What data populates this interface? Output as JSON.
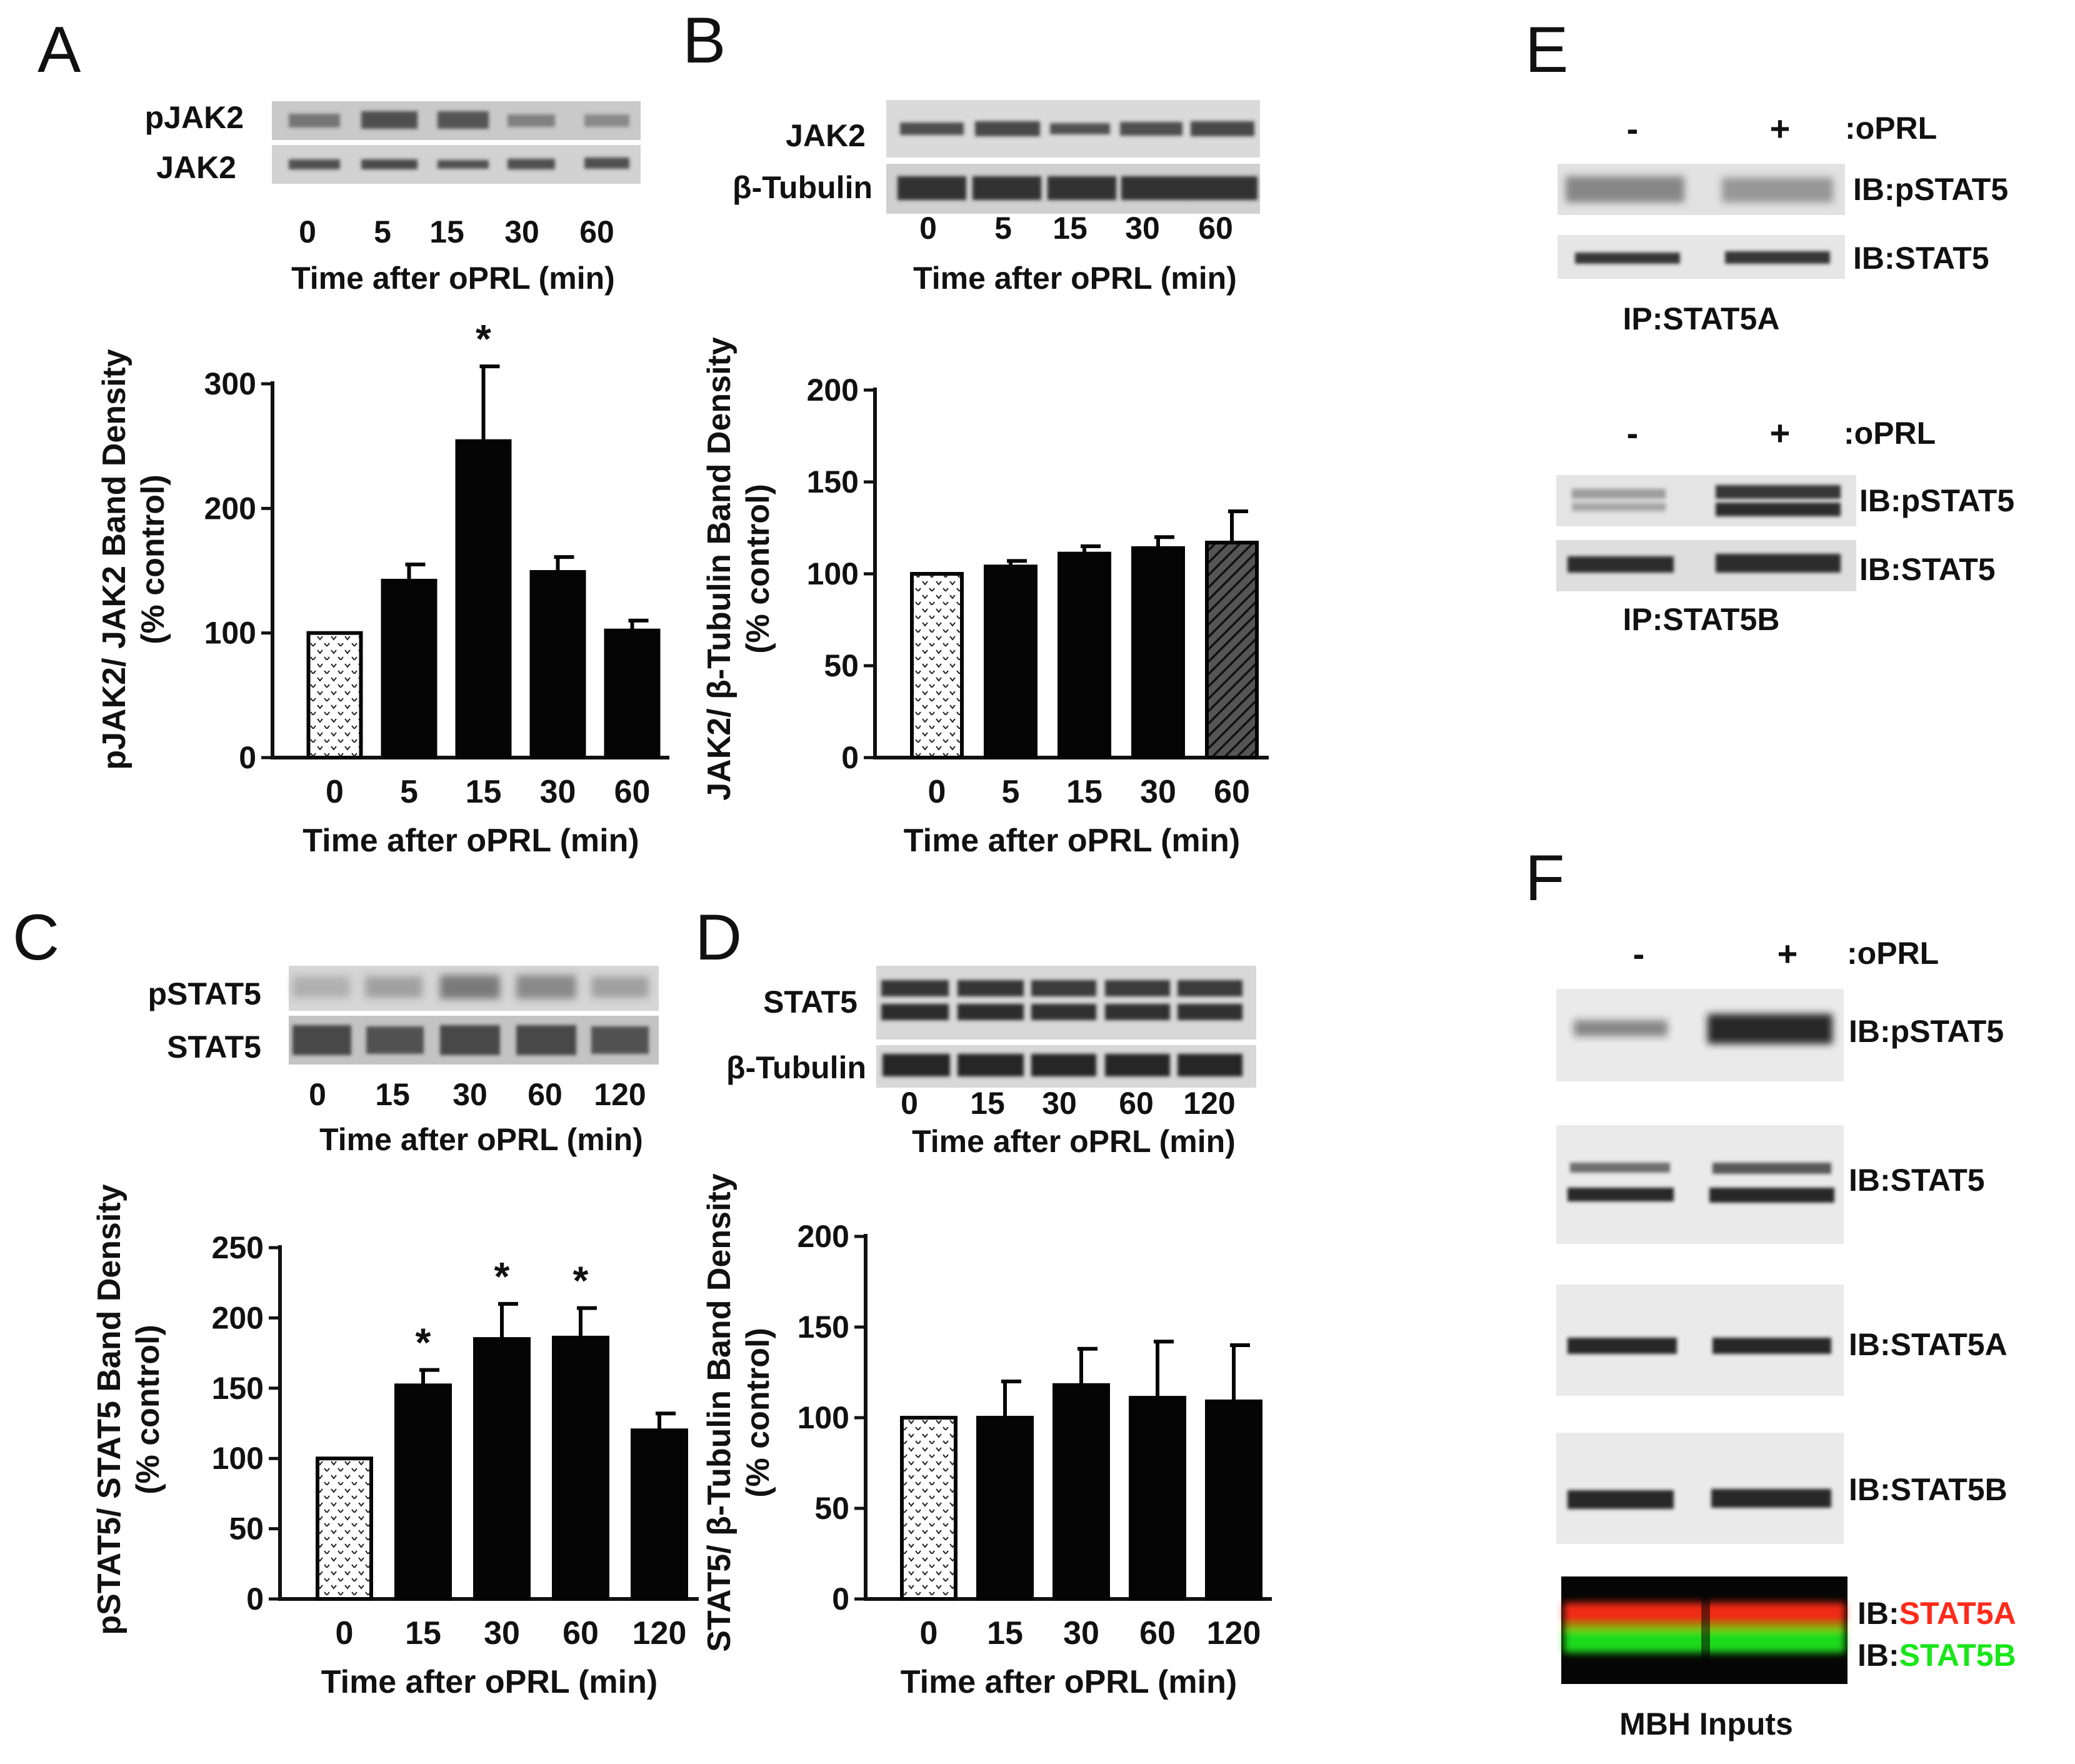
{
  "colors": {
    "ink": "#111111",
    "red": "#ff2a1a",
    "green": "#19e619"
  },
  "panels": {
    "A": {
      "letter": "A",
      "blot": {
        "rows": [
          "pJAK2",
          "JAK2"
        ],
        "lanes": [
          "0",
          "5",
          "15",
          "30",
          "60"
        ],
        "time_label": "Time after oPRL (min)"
      },
      "chart_data": {
        "type": "bar",
        "categories": [
          "0",
          "5",
          "15",
          "30",
          "60"
        ],
        "values": [
          100,
          142,
          254,
          149,
          102
        ],
        "errors": [
          0,
          13,
          60,
          12,
          8
        ],
        "significant": [
          false,
          false,
          true,
          false,
          false
        ],
        "sig_marker": "*",
        "ylabel_line1": "pJAK2/ JAK2 Band Density",
        "ylabel_line2": "(% control)",
        "xlabel": "Time after oPRL (min)",
        "ylim": [
          0,
          300
        ],
        "yticks": [
          "0",
          "100",
          "200",
          "300"
        ],
        "patterns": [
          "dots",
          "solid",
          "solid",
          "solid",
          "solid"
        ]
      }
    },
    "B": {
      "letter": "B",
      "blot": {
        "rows": [
          "JAK2",
          "β-Tubulin"
        ],
        "lanes": [
          "0",
          "5",
          "15",
          "30",
          "60"
        ],
        "time_label": "Time after oPRL (min)"
      },
      "chart_data": {
        "type": "bar",
        "categories": [
          "0",
          "5",
          "15",
          "30",
          "60"
        ],
        "values": [
          100,
          104,
          111,
          114,
          117
        ],
        "errors": [
          0,
          3,
          4,
          6,
          17
        ],
        "significant": [
          false,
          false,
          false,
          false,
          false
        ],
        "sig_marker": "*",
        "ylabel_line1": "JAK2/ β-Tubulin Band Density",
        "ylabel_line2": "(% control)",
        "xlabel": "Time after oPRL (min)",
        "ylim": [
          0,
          200
        ],
        "yticks": [
          "0",
          "50",
          "100",
          "150",
          "200"
        ],
        "patterns": [
          "dots",
          "solid",
          "solid",
          "solid",
          "hatch"
        ]
      }
    },
    "C": {
      "letter": "C",
      "blot": {
        "rows": [
          "pSTAT5",
          "STAT5"
        ],
        "lanes": [
          "0",
          "15",
          "30",
          "60",
          "120"
        ],
        "time_label": "Time after oPRL (min)"
      },
      "chart_data": {
        "type": "bar",
        "categories": [
          "0",
          "15",
          "30",
          "60",
          "120"
        ],
        "values": [
          100,
          152,
          185,
          186,
          120
        ],
        "errors": [
          0,
          11,
          25,
          21,
          12
        ],
        "significant": [
          false,
          true,
          true,
          true,
          false
        ],
        "sig_marker": "*",
        "ylabel_line1": "pSTAT5/ STAT5 Band Density",
        "ylabel_line2": "(% control)",
        "xlabel": "Time after oPRL (min)",
        "ylim": [
          0,
          250
        ],
        "yticks": [
          "0",
          "50",
          "100",
          "150",
          "200",
          "250"
        ],
        "patterns": [
          "dots",
          "solid",
          "solid",
          "solid",
          "solid"
        ]
      }
    },
    "D": {
      "letter": "D",
      "blot": {
        "rows": [
          "STAT5",
          "β-Tubulin"
        ],
        "lanes": [
          "0",
          "15",
          "30",
          "60",
          "120"
        ],
        "time_label": "Time after oPRL (min)"
      },
      "chart_data": {
        "type": "bar",
        "categories": [
          "0",
          "15",
          "30",
          "60",
          "120"
        ],
        "values": [
          100,
          100,
          118,
          111,
          109
        ],
        "errors": [
          0,
          20,
          20,
          31,
          31
        ],
        "significant": [
          false,
          false,
          false,
          false,
          false
        ],
        "sig_marker": "*",
        "ylabel_line1": "STAT5/ β-Tubulin Band Density",
        "ylabel_line2": "(% control)",
        "xlabel": "Time after oPRL (min)",
        "ylim": [
          0,
          200
        ],
        "yticks": [
          "0",
          "50",
          "100",
          "150",
          "200"
        ],
        "patterns": [
          "dots",
          "solid",
          "solid",
          "solid",
          "solid"
        ]
      }
    },
    "E": {
      "letter": "E",
      "minus": "-",
      "plus": "+",
      "treatment": ":oPRL",
      "ib_pstat5": "IB:pSTAT5",
      "ib_stat5": "IB:STAT5",
      "ip_a": "IP:STAT5A",
      "ip_b": "IP:STAT5B"
    },
    "F": {
      "letter": "F",
      "minus": "-",
      "plus": "+",
      "treatment": ":oPRL",
      "ib_pstat5": "IB:pSTAT5",
      "ib_stat5": "IB:STAT5",
      "ib_stat5a": "IB:STAT5A",
      "ib_stat5b": "IB:STAT5B",
      "ib_prefix": "IB:",
      "merge_a": "STAT5A",
      "merge_b": "STAT5B",
      "inputs": "MBH Inputs"
    }
  }
}
